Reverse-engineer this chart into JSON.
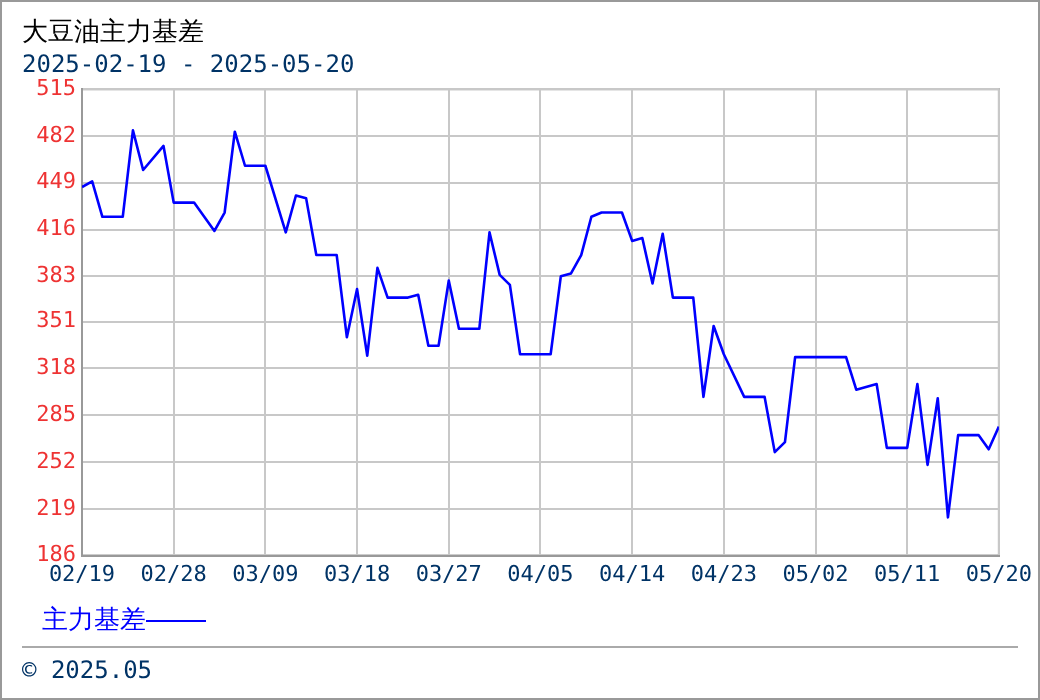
{
  "chart_data": {
    "type": "line",
    "title": "大豆油主力基差",
    "subtitle": "2025-02-19 - 2025-05-20",
    "x": [
      "2025-02-19",
      "2025-02-20",
      "2025-02-21",
      "2025-02-23",
      "2025-02-24",
      "2025-02-25",
      "2025-02-27",
      "2025-02-28",
      "2025-03-02",
      "2025-03-04",
      "2025-03-05",
      "2025-03-06",
      "2025-03-07",
      "2025-03-09",
      "2025-03-11",
      "2025-03-12",
      "2025-03-13",
      "2025-03-14",
      "2025-03-16",
      "2025-03-17",
      "2025-03-18",
      "2025-03-19",
      "2025-03-20",
      "2025-03-21",
      "2025-03-23",
      "2025-03-24",
      "2025-03-25",
      "2025-03-26",
      "2025-03-27",
      "2025-03-28",
      "2025-03-30",
      "2025-03-31",
      "2025-04-01",
      "2025-04-02",
      "2025-04-03",
      "2025-04-06",
      "2025-04-07",
      "2025-04-08",
      "2025-04-09",
      "2025-04-10",
      "2025-04-11",
      "2025-04-13",
      "2025-04-14",
      "2025-04-15",
      "2025-04-16",
      "2025-04-17",
      "2025-04-18",
      "2025-04-20",
      "2025-04-21",
      "2025-04-22",
      "2025-04-23",
      "2025-04-25",
      "2025-04-27",
      "2025-04-28",
      "2025-04-29",
      "2025-04-30",
      "2025-05-05",
      "2025-05-06",
      "2025-05-08",
      "2025-05-09",
      "2025-05-11",
      "2025-05-12",
      "2025-05-13",
      "2025-05-14",
      "2025-05-15",
      "2025-05-16",
      "2025-05-18",
      "2025-05-19",
      "2025-05-20"
    ],
    "series": [
      {
        "name": "主力基差",
        "color": "#0000ff",
        "values": [
          446,
          450,
          425,
          425,
          486,
          458,
          475,
          435,
          435,
          415,
          428,
          485,
          461,
          461,
          414,
          440,
          438,
          398,
          398,
          340,
          374,
          327,
          389,
          368,
          368,
          370,
          334,
          334,
          380,
          346,
          346,
          414,
          384,
          377,
          328,
          328,
          383,
          385,
          398,
          425,
          428,
          428,
          408,
          410,
          378,
          413,
          368,
          368,
          298,
          348,
          328,
          298,
          298,
          259,
          266,
          326,
          326,
          303,
          307,
          262,
          262,
          307,
          250,
          297,
          213,
          271,
          271,
          261,
          277
        ]
      }
    ],
    "xlim": [
      "2025-02-19",
      "2025-05-20"
    ],
    "xticks": [
      {
        "value": "2025-02-19",
        "label": "02/19"
      },
      {
        "value": "2025-02-28",
        "label": "02/28"
      },
      {
        "value": "2025-03-09",
        "label": "03/09"
      },
      {
        "value": "2025-03-18",
        "label": "03/18"
      },
      {
        "value": "2025-03-27",
        "label": "03/27"
      },
      {
        "value": "2025-04-05",
        "label": "04/05"
      },
      {
        "value": "2025-04-14",
        "label": "04/14"
      },
      {
        "value": "2025-04-23",
        "label": "04/23"
      },
      {
        "value": "2025-05-02",
        "label": "05/02"
      },
      {
        "value": "2025-05-11",
        "label": "05/11"
      },
      {
        "value": "2025-05-20",
        "label": "05/20"
      }
    ],
    "ylim": [
      186,
      515
    ],
    "yticks": [
      186,
      219,
      252,
      285,
      318,
      351,
      383,
      416,
      449,
      482,
      515
    ],
    "grid": true,
    "legend": "bottom left",
    "marker": "none",
    "line_style": "solid",
    "annotations": [
      "© 2025.05"
    ]
  }
}
